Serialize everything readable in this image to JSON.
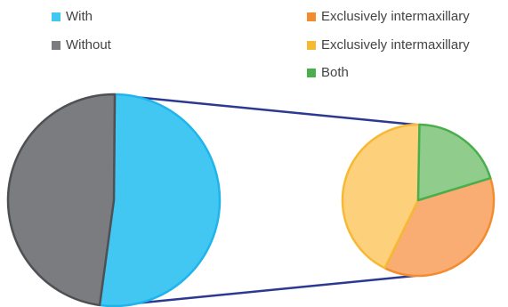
{
  "chart_data": [
    {
      "type": "pie",
      "series": [
        {
          "name": "With",
          "value": 52,
          "color": "#42C6F2",
          "edge": "#1FB5EC"
        },
        {
          "name": "Without",
          "value": 48,
          "color": "#7B7C80",
          "edge": "#4F5054"
        }
      ],
      "legend": "top-left"
    },
    {
      "type": "pie",
      "series": [
        {
          "name": "Exclusively intermaxillary",
          "value": 37,
          "color": "#F9AD73",
          "edge": "#F28C2E"
        },
        {
          "name": "Exclusively intermaxillary",
          "value": 43,
          "color": "#FDD07C",
          "edge": "#F7B934"
        },
        {
          "name": "Both",
          "value": 20,
          "color": "#90CC8C",
          "edge": "#4AAE4C"
        }
      ],
      "legend": "top-right"
    }
  ],
  "connector_color": "#2B3990"
}
